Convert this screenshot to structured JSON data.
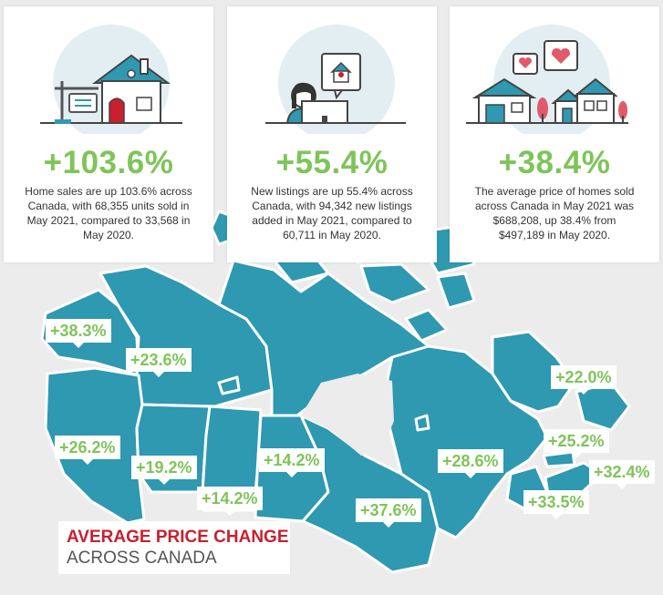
{
  "cards": [
    {
      "stat": "+103.6%",
      "desc": "Home sales are up 103.6% across Canada, with 68,355 units sold in May 2021, compared to 33,568 in May 2020."
    },
    {
      "stat": "+55.4%",
      "desc": "New listings are up 55.4% across Canada, with 94,342 new listings added in May 2021, compared to 60,711 in May 2020."
    },
    {
      "stat": "+38.4%",
      "desc": "The average price of homes sold across Canada in May 2021 was $688,208, up 38.4% from $497,189 in May 2020."
    }
  ],
  "map": {
    "title_line1": "AVERAGE PRICE CHANGE",
    "title_line2": "ACROSS CANADA",
    "labels": {
      "yukon": "+38.3%",
      "nwt": "+23.6%",
      "bc": "+26.2%",
      "alberta": "+19.2%",
      "saskatchewan": "+14.2%",
      "manitoba": "+14.2%",
      "ontario": "+37.6%",
      "quebec": "+28.6%",
      "newfoundland": "+22.0%",
      "pei": "+25.2%",
      "nova_scotia": "+32.4%",
      "new_brunswick": "+33.5%"
    }
  },
  "colors": {
    "accent_green": "#7fc45a",
    "map_teal": "#2e99b0",
    "title_red": "#c8202f"
  }
}
